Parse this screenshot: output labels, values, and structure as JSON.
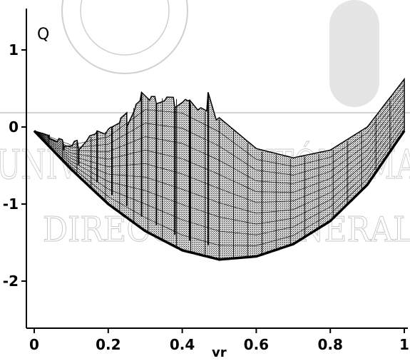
{
  "chart_data": {
    "type": "area",
    "title": "",
    "xlabel": "vr",
    "ylabel": "Q",
    "xlim": [
      0,
      1
    ],
    "ylim": [
      -2.5,
      1.5
    ],
    "x_ticks": [
      "0",
      "0.2",
      "0.4",
      "0.6",
      "0.8",
      "1"
    ],
    "y_ticks": [
      "1",
      "0",
      "-1",
      "-2"
    ],
    "grid": false,
    "series": [
      {
        "x": [
          0.0,
          0.1,
          0.2,
          0.3,
          0.4,
          0.5,
          0.6,
          0.7,
          0.8,
          0.9,
          1.0
        ],
        "values": [
          -0.05,
          -0.55,
          -1.0,
          -1.35,
          -1.6,
          -1.72,
          -1.68,
          -1.52,
          -1.22,
          -0.75,
          -0.05
        ]
      },
      {
        "x": [
          0.0,
          0.1,
          0.2,
          0.3,
          0.4,
          0.5,
          0.6,
          0.7,
          0.8,
          0.9,
          1.0
        ],
        "values": [
          -0.05,
          -0.2,
          -0.03,
          0.4,
          0.38,
          0.12,
          -0.28,
          -0.4,
          -0.3,
          0.0,
          0.62
        ]
      }
    ],
    "spike_x": [
      0.04,
      0.08,
      0.12,
      0.17,
      0.21,
      0.25,
      0.29,
      0.33,
      0.38,
      0.42,
      0.47
    ],
    "spike_peaks": [
      -0.15,
      -0.25,
      -0.3,
      -0.05,
      0.0,
      0.0,
      0.45,
      0.3,
      0.25,
      0.35,
      0.45
    ]
  },
  "watermark": {
    "line1": "UNIVERSIDAD AUTÓNOMA",
    "line2": "DIRECCIÓN GENERAL"
  }
}
